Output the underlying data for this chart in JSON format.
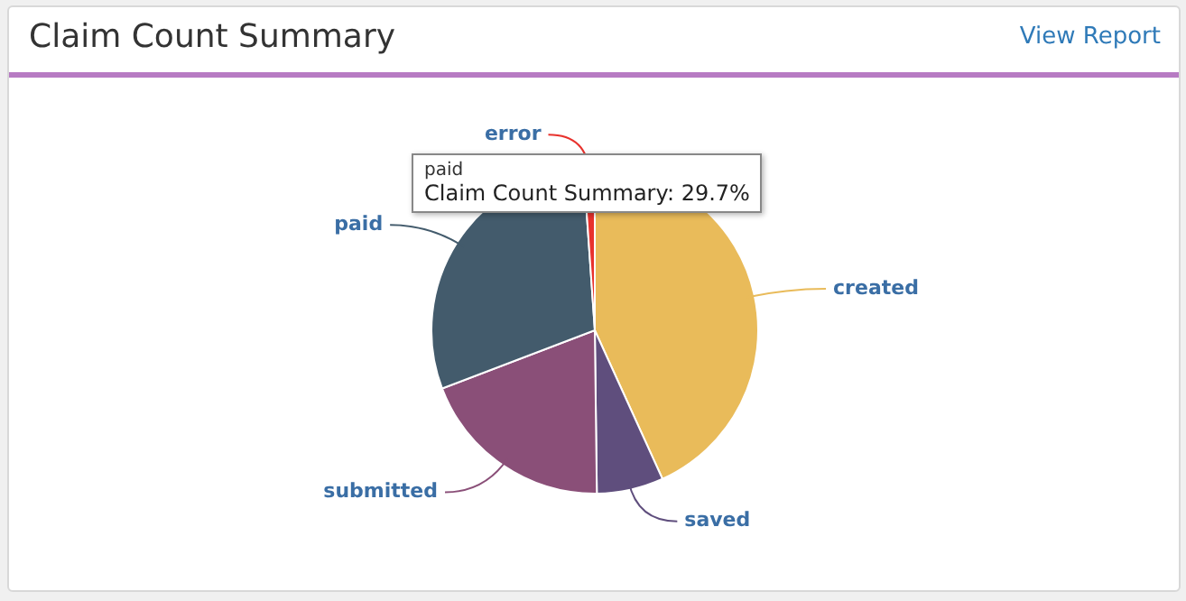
{
  "chart_data": {
    "type": "pie",
    "title": "Claim Count Summary",
    "categories": [
      "created",
      "saved",
      "submitted",
      "paid",
      "error"
    ],
    "values": [
      43.2,
      6.6,
      19.4,
      29.7,
      1.1
    ],
    "colors": [
      "#e9bb5a",
      "#5f4e7d",
      "#8a4f78",
      "#435b6c",
      "#e8322d"
    ],
    "legend": false,
    "annotations": [
      "View Report",
      "paid",
      "Claim Count Summary: 29.7%"
    ]
  }
}
